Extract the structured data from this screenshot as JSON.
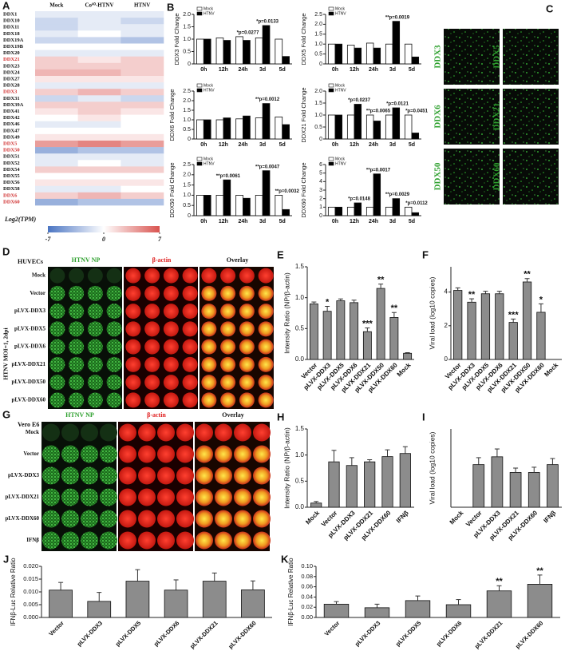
{
  "chart_data": [
    {
      "type": "heatmap",
      "label": "A",
      "columns": [
        "Mock",
        "Co⁶⁰-HTNV",
        "HTNV"
      ],
      "rows": [
        "DDX1",
        "DDX10",
        "DDX11",
        "DDX18",
        "DDX19A",
        "DDX19B",
        "DDX20",
        "DDX21",
        "DDX23",
        "DDX24",
        "DDX27",
        "DDX28",
        "DDX3",
        "DDX31",
        "DDX39A",
        "DDX41",
        "DDX42",
        "DDX46",
        "DDX47",
        "DDX49",
        "DDX5",
        "DDX50",
        "DDX51",
        "DDX52",
        "DDX54",
        "DDX55",
        "DDX56",
        "DDX58",
        "DDX6",
        "DDX60"
      ],
      "row_label_colors": [
        "#111",
        "#111",
        "#111",
        "#111",
        "#111",
        "#111",
        "#111",
        "#d03030",
        "#111",
        "#111",
        "#111",
        "#111",
        "#d03030",
        "#111",
        "#111",
        "#111",
        "#111",
        "#111",
        "#111",
        "#111",
        "#d03030",
        "#d03030",
        "#111",
        "#111",
        "#111",
        "#111",
        "#111",
        "#111",
        "#d03030",
        "#d03030"
      ],
      "values": [
        [
          -1,
          -1,
          -1
        ],
        [
          -2,
          -1,
          -2
        ],
        [
          -2,
          -1,
          -1
        ],
        [
          -1,
          0,
          -1
        ],
        [
          -2,
          -2,
          -3
        ],
        [
          0,
          0,
          0
        ],
        [
          -1,
          -1,
          -1
        ],
        [
          2,
          1,
          2
        ],
        [
          2,
          2,
          2
        ],
        [
          3,
          3,
          2
        ],
        [
          1,
          1,
          1
        ],
        [
          -1,
          -1,
          -1
        ],
        [
          2,
          3,
          2
        ],
        [
          -2,
          -1,
          -2
        ],
        [
          2,
          2,
          2
        ],
        [
          1,
          2,
          1
        ],
        [
          0,
          1,
          0
        ],
        [
          -1,
          -1,
          0
        ],
        [
          0,
          0,
          0
        ],
        [
          1,
          1,
          1
        ],
        [
          4,
          5,
          4
        ],
        [
          -4,
          -3,
          -3
        ],
        [
          -1,
          -1,
          -1
        ],
        [
          -1,
          0,
          -1
        ],
        [
          2,
          2,
          2
        ],
        [
          0,
          0,
          0
        ],
        [
          1,
          1,
          1
        ],
        [
          -1,
          -1,
          0
        ],
        [
          2,
          3,
          2
        ],
        [
          -4,
          -3,
          -3
        ]
      ],
      "zlim": [
        -7,
        7
      ],
      "colors": [
        "#4a74c2",
        "#ffffff",
        "#d9534f"
      ],
      "colorbar_label": "Log2(TPM)",
      "colorbar_ticks": [
        -7,
        0,
        7
      ]
    },
    {
      "type": "bar",
      "label": "B",
      "ylabel": "DDX3 Fold Change",
      "categories": [
        "0h",
        "12h",
        "24h",
        "3d",
        "5d"
      ],
      "series": [
        {
          "name": "Mock",
          "color": "#ffffff",
          "values": [
            1,
            1.05,
            1.1,
            1.05,
            1.0
          ]
        },
        {
          "name": "HTNV",
          "color": "#000000",
          "values": [
            1,
            0.95,
            0.95,
            1.55,
            0.3
          ]
        }
      ],
      "ylim": [
        0,
        2
      ],
      "yticks": [
        0,
        0.5,
        {
          "value": 1,
          "label": "1.0"
        },
        1.5,
        {
          "value": 2,
          "label": "2.0"
        }
      ],
      "annotations": [
        {
          "index": 2,
          "text": "*p=0.0277"
        },
        {
          "index": 3,
          "text": "*p=0.0133"
        }
      ]
    },
    {
      "type": "bar",
      "ylabel": "DDX5 Fold Change",
      "categories": [
        "0h",
        "12h",
        "24h",
        "3d",
        "5d"
      ],
      "series": [
        {
          "name": "Mock",
          "color": "#ffffff",
          "values": [
            1,
            0.95,
            1.05,
            1.0,
            1.0
          ]
        },
        {
          "name": "HTNV",
          "color": "#000000",
          "values": [
            1,
            0.8,
            0.8,
            2.15,
            0.35
          ]
        }
      ],
      "ylim": [
        0,
        2.5
      ],
      "yticks": [
        0,
        0.5,
        {
          "value": 1,
          "label": "1.0"
        },
        1.5,
        {
          "value": 2,
          "label": "2.0"
        },
        2.5
      ],
      "annotations": [
        {
          "index": 3,
          "text": "**p=0.0019"
        }
      ]
    },
    {
      "type": "bar",
      "ylabel": "DDX6 Fold Change",
      "categories": [
        "0h",
        "12h",
        "24h",
        "3d",
        "5d"
      ],
      "series": [
        {
          "name": "Mock",
          "color": "#ffffff",
          "values": [
            1,
            1.0,
            1.05,
            1.1,
            1.15
          ]
        },
        {
          "name": "HTNV",
          "color": "#000000",
          "values": [
            1,
            1.1,
            1.2,
            1.85,
            0.75
          ]
        }
      ],
      "ylim": [
        0,
        2.5
      ],
      "yticks": [
        0,
        0.5,
        {
          "value": 1,
          "label": "1.0"
        },
        1.5,
        {
          "value": 2,
          "label": "2.0"
        },
        2.5
      ],
      "annotations": [
        {
          "index": 3,
          "text": "**p=0.0012"
        }
      ]
    },
    {
      "type": "bar",
      "ylabel": "DDX21 Fold Change",
      "categories": [
        "0h",
        "12h",
        "24h",
        "3d",
        "5d"
      ],
      "series": [
        {
          "name": "Mock",
          "color": "#ffffff",
          "values": [
            1,
            1.0,
            1.0,
            1.0,
            1.0
          ]
        },
        {
          "name": "HTNV",
          "color": "#000000",
          "values": [
            1,
            1.45,
            0.75,
            1.3,
            0.25
          ]
        }
      ],
      "ylim": [
        0,
        2
      ],
      "yticks": [
        0,
        0.5,
        {
          "value": 1,
          "label": "1.0"
        },
        1.5,
        {
          "value": 2,
          "label": "2.0"
        }
      ],
      "annotations": [
        {
          "index": 1,
          "text": "*p=0.0237"
        },
        {
          "index": 2,
          "text": "**p=0.0065"
        },
        {
          "index": 3,
          "text": "*p=0.0121"
        },
        {
          "index": 4,
          "text": "*p=0.0451"
        }
      ]
    },
    {
      "type": "bar",
      "ylabel": "DDX50 Fold Change",
      "categories": [
        "0h",
        "12h",
        "24h",
        "3d",
        "5d"
      ],
      "series": [
        {
          "name": "Mock",
          "color": "#ffffff",
          "values": [
            1,
            1,
            1,
            1,
            1
          ]
        },
        {
          "name": "HTNV",
          "color": "#000000",
          "values": [
            1,
            1.75,
            0.85,
            2.2,
            0.3
          ]
        }
      ],
      "ylim": [
        0,
        2.5
      ],
      "yticks": [
        0,
        0.5,
        {
          "value": 1,
          "label": "1.0"
        },
        1.5,
        {
          "value": 2,
          "label": "2.0"
        },
        2.5
      ],
      "annotations": [
        {
          "index": 1,
          "text": "**p=0.0061"
        },
        {
          "index": 3,
          "text": "**p=0.0047"
        },
        {
          "index": 4,
          "text": "**p=0.0032"
        }
      ]
    },
    {
      "type": "bar",
      "ylabel": "DDX60 Fold Change",
      "categories": [
        "0h",
        "12h",
        "24h",
        "3d",
        "5d"
      ],
      "series": [
        {
          "name": "Mock",
          "color": "#ffffff",
          "values": [
            1,
            1,
            1,
            1,
            1
          ]
        },
        {
          "name": "HTNV",
          "color": "#000000",
          "values": [
            1,
            1.5,
            4.9,
            2.0,
            0.35
          ]
        }
      ],
      "ylim": [
        0,
        6
      ],
      "yticks": [
        0,
        1,
        2,
        3,
        4,
        5,
        6
      ],
      "annotations": [
        {
          "index": 1,
          "text": "*p=0.0148"
        },
        {
          "index": 2,
          "text": "**p=0.0017"
        },
        {
          "index": 3,
          "text": "**p=0.0029"
        },
        {
          "index": 4,
          "text": "*p=0.0112"
        }
      ]
    },
    {
      "type": "bar",
      "label": "E",
      "ylabel": "Intensity Ratio (NP/β-actin)",
      "categories": [
        "Vector",
        "pLVX-DDX3",
        "pLVX-DDX5",
        "pLVX-DDX6",
        "pLVX-DDX21",
        "pLVX-DDX50",
        "pLVX-DDX60",
        "Mock"
      ],
      "values": [
        0.9,
        0.78,
        0.95,
        0.92,
        0.45,
        1.15,
        0.68,
        0.1
      ],
      "errors": [
        0.03,
        0.08,
        0.03,
        0.04,
        0.06,
        0.07,
        0.08,
        0.01
      ],
      "color": "#8c8c8c",
      "ylim": [
        0,
        1.5
      ],
      "yticks": [
        {
          "value": 0,
          "label": "0.0"
        },
        0.5,
        {
          "value": 1,
          "label": "1.0"
        },
        1.5
      ],
      "annotations": [
        {
          "index": 1,
          "text": "*"
        },
        {
          "index": 4,
          "text": "***"
        },
        {
          "index": 5,
          "text": "**"
        },
        {
          "index": 6,
          "text": "**"
        }
      ]
    },
    {
      "type": "bar",
      "label": "F",
      "ylabel": "Viral load (log10 copies)",
      "categories": [
        "Vector",
        "pLVX-DDX3",
        "pLVX-DDX5",
        "pLVX-DDX6",
        "pLVX-DDX21",
        "pLVX-DDX50",
        "pLVX-DDX60",
        "Mock"
      ],
      "values": [
        4.1,
        3.4,
        3.9,
        3.9,
        2.2,
        4.6,
        2.8,
        null
      ],
      "errors": [
        0.15,
        0.2,
        0.15,
        0.15,
        0.2,
        0.2,
        0.5,
        null
      ],
      "color": "#8c8c8c",
      "ylim": [
        0,
        5.5
      ],
      "yticks": [
        0,
        2,
        4
      ],
      "annotations": [
        {
          "index": 1,
          "text": "**"
        },
        {
          "index": 4,
          "text": "***"
        },
        {
          "index": 5,
          "text": "**"
        },
        {
          "index": 6,
          "text": "*"
        }
      ]
    },
    {
      "type": "bar",
      "label": "H",
      "ylabel": "Intensity Ratio (NP/β-actin)",
      "categories": [
        "Mock",
        "Vector",
        "pLVX-DDX3",
        "pLVX-DDX21",
        "pLVX-DDX60",
        "IFNβ"
      ],
      "values": [
        0.08,
        0.87,
        0.8,
        0.87,
        0.97,
        1.03
      ],
      "errors": [
        0.03,
        0.22,
        0.15,
        0.04,
        0.13,
        0.13
      ],
      "color": "#8c8c8c",
      "ylim": [
        0,
        1.5
      ],
      "yticks": [
        {
          "value": 0,
          "label": "0.0"
        },
        0.5,
        {
          "value": 1,
          "label": "1.0"
        },
        1.5
      ]
    },
    {
      "type": "bar",
      "label": "I",
      "ylabel": "Viral load (log10 copies)",
      "categories": [
        "Mock",
        "Vector",
        "pLVX-DDX3",
        "pLVX-DDX21",
        "pLVX-DDX60",
        "IFNβ"
      ],
      "values": [
        null,
        4.9,
        5.8,
        4.0,
        4.0,
        4.9
      ],
      "errors": [
        null,
        0.8,
        0.9,
        0.5,
        0.6,
        0.7
      ],
      "color": "#8c8c8c",
      "ylim": [
        0,
        9
      ]
    },
    {
      "type": "bar",
      "label": "J",
      "ylabel": "IFNβ-Luc Relative Ratio",
      "categories": [
        "Vector",
        "pLVX-DDX3",
        "pLVX-DDX5",
        "pLVX-DDX6",
        "pLVX-DDX21",
        "pLVX-DDX60"
      ],
      "values": [
        0.0107,
        0.0063,
        0.0142,
        0.0107,
        0.0142,
        0.0108
      ],
      "errors": [
        0.003,
        0.0035,
        0.0045,
        0.004,
        0.0032,
        0.0035
      ],
      "color": "#8c8c8c",
      "ylim": [
        0,
        0.02
      ],
      "yticks": [
        {
          "value": 0,
          "label": "0.000"
        },
        0.005,
        {
          "value": 0.01,
          "label": "0.010"
        },
        0.015,
        {
          "value": 0.02,
          "label": "0.020"
        }
      ]
    },
    {
      "type": "bar",
      "label": "K",
      "ylabel": "IFNβ-Luc Relative Ratio",
      "categories": [
        "Vector",
        "pLVX-DDX3",
        "pLVX-DDX5",
        "pLVX-DDX6",
        "pLVX-DDX21",
        "pLVX-DDX60"
      ],
      "values": [
        0.026,
        0.019,
        0.033,
        0.025,
        0.052,
        0.065
      ],
      "errors": [
        0.005,
        0.007,
        0.009,
        0.01,
        0.01,
        0.018
      ],
      "color": "#8c8c8c",
      "ylim": [
        0,
        0.1
      ],
      "yticks": [
        {
          "value": 0,
          "label": "0.00"
        },
        0.02,
        0.04,
        0.06,
        0.08,
        {
          "value": 0.1,
          "label": "0.10"
        }
      ],
      "annotations": [
        {
          "index": 4,
          "text": "**"
        },
        {
          "index": 5,
          "text": "**"
        }
      ]
    }
  ],
  "image_panels": [
    {
      "label": "C",
      "rows": [
        [
          "DDX3",
          "DDX5"
        ],
        [
          "DDX6",
          "DDX21"
        ],
        [
          "DDX50",
          "DDX60"
        ]
      ]
    },
    {
      "label": "D",
      "title": "HUVECs",
      "columns": [
        "HTNV NP",
        "β-actin",
        "Overlay"
      ],
      "rows": [
        "Mock",
        "Vector",
        "pLVX-DDX3",
        "pLVX-DDX5",
        "pLVX-DDX6",
        "pLVX-DDX21",
        "pLVX-DDX50",
        "pLVX-DDX60"
      ],
      "side_label": "HTNV MOI=1, 2dpi"
    },
    {
      "label": "G",
      "title": "Vero E6",
      "columns": [
        "HTNV NP",
        "β-actin",
        "Overlay"
      ],
      "rows": [
        "Mock",
        "Vector",
        "pLVX-DDX3",
        "pLVX-DDX21",
        "pLVX-DDX60",
        "IFNβ"
      ]
    }
  ]
}
